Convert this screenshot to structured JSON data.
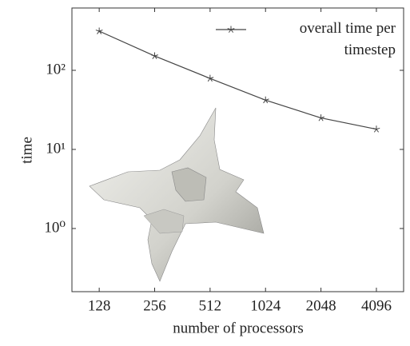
{
  "chart_data": {
    "type": "line",
    "x_label": "number of processors",
    "y_label": "time",
    "x": [
      128,
      256,
      512,
      1024,
      2048,
      4096
    ],
    "series": [
      {
        "name": "overall time per timestep",
        "color": "#444444",
        "values": [
          313,
          152,
          79,
          42,
          25,
          18
        ]
      }
    ],
    "xscale": "log",
    "yscale": "log",
    "xlim": [
      91,
      5756
    ],
    "ylim": [
      0.159,
      614
    ],
    "xticks": [
      128,
      256,
      512,
      1024,
      2048,
      4096
    ],
    "yticks": [
      {
        "value": 1,
        "label": "10⁰"
      },
      {
        "value": 10,
        "label": "10¹"
      },
      {
        "value": 100,
        "label": "10²"
      }
    ],
    "legend": "upper right",
    "grid": false
  }
}
